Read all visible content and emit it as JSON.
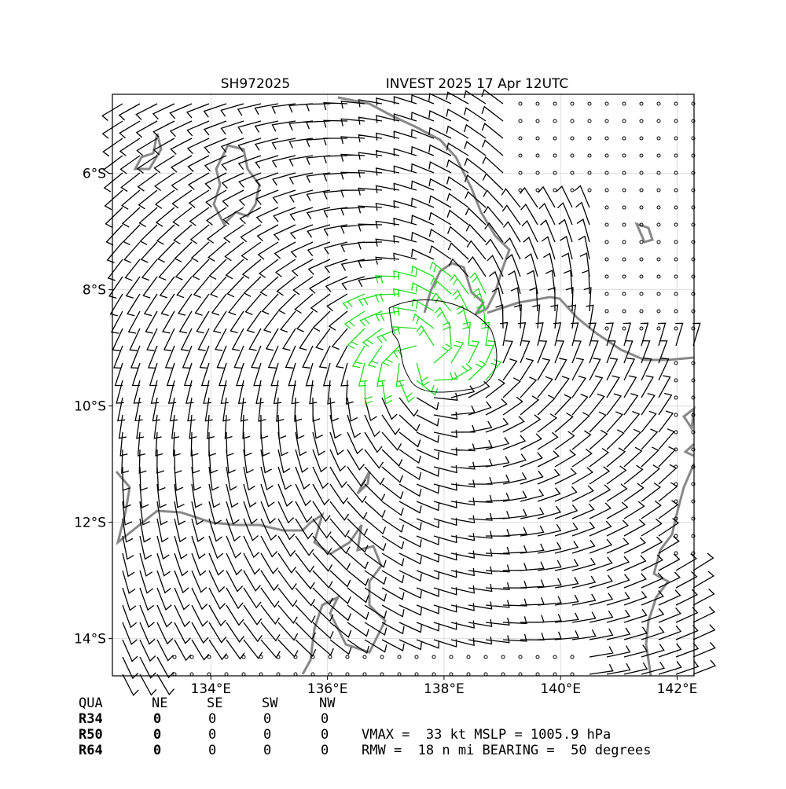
{
  "header": {
    "left": "SH972025",
    "right": "INVEST 2025 17 Apr 12UTC"
  },
  "map": {
    "xlim": [
      132.31,
      142.29
    ],
    "ylim": [
      -14.64,
      -4.64
    ],
    "xticks": [
      {
        "value": 134,
        "label": "134°E"
      },
      {
        "value": 136,
        "label": "136°E"
      },
      {
        "value": 138,
        "label": "138°E"
      },
      {
        "value": 140,
        "label": "140°E"
      },
      {
        "value": 142,
        "label": "142°E"
      }
    ],
    "yticks": [
      {
        "value": -6,
        "label": "6°S"
      },
      {
        "value": -8,
        "label": "8°S"
      },
      {
        "value": -10,
        "label": "10°S"
      },
      {
        "value": -12,
        "label": "12°S"
      },
      {
        "value": -14,
        "label": "14°S"
      }
    ]
  },
  "radii_table": {
    "header": [
      "QUA",
      "NE",
      "SE",
      "SW",
      "NW"
    ],
    "rows": [
      [
        "R34",
        0,
        0,
        0,
        0
      ],
      [
        "R50",
        0,
        0,
        0,
        0
      ],
      [
        "R64",
        0,
        0,
        0,
        0
      ]
    ]
  },
  "summary": [
    "VMAX =  33 kt MSLP = 1005.9 hPa",
    "RMW =  18 n mi BEARING =  50 degrees"
  ]
}
